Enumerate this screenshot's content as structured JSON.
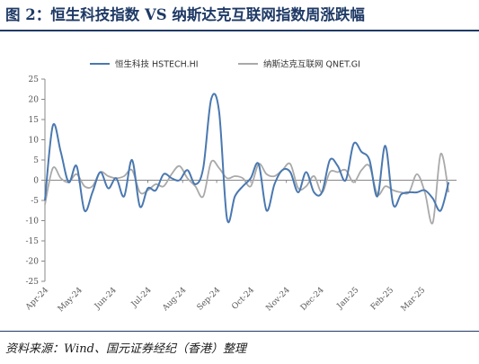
{
  "figure": {
    "title": "图 2：恒生科技指数 VS 纳斯达克互联网指数周涨跌幅",
    "source": "资料来源：Wind、国元证券经纪（香港）整理"
  },
  "chart_data": {
    "type": "line",
    "ylim": [
      -25,
      25
    ],
    "yticks": [
      -25,
      -20,
      -15,
      -10,
      -5,
      0,
      5,
      10,
      15,
      20,
      25
    ],
    "xlim": [
      0,
      52
    ],
    "x_tick_labels": [
      {
        "label": "Apr-24",
        "pos": 0
      },
      {
        "label": "May-24",
        "pos": 4.3
      },
      {
        "label": "Jun-24",
        "pos": 8.6
      },
      {
        "label": "Jul-24",
        "pos": 13
      },
      {
        "label": "Aug-24",
        "pos": 17.4
      },
      {
        "label": "Sep-24",
        "pos": 21.7
      },
      {
        "label": "Oct-24",
        "pos": 26
      },
      {
        "label": "Nov-24",
        "pos": 30.5
      },
      {
        "label": "Dec-24",
        "pos": 34.8
      },
      {
        "label": "Jan-25",
        "pos": 39.2
      },
      {
        "label": "Feb-25",
        "pos": 43.6
      },
      {
        "label": "Mar-25",
        "pos": 47.6
      }
    ],
    "grid": false,
    "legend_position": "top",
    "series": [
      {
        "name": "恒生科技 HSTECH.HI",
        "color": "#4a78b0",
        "values": [
          -5,
          13.5,
          7,
          -0.5,
          3.5,
          -7.5,
          -3,
          2,
          -2,
          0.5,
          -4,
          5,
          -6.5,
          -2,
          -2.5,
          1.5,
          0.5,
          0,
          2.5,
          -1,
          3,
          20,
          17,
          -9.5,
          -4,
          -1.5,
          0.5,
          4,
          -7.5,
          -1,
          2.5,
          2,
          -3,
          2,
          -3,
          -3,
          5,
          3.5,
          0,
          9,
          7,
          5,
          -4,
          8.5,
          -6,
          -3.5,
          -3,
          -3,
          -2.5,
          -4.5,
          -7.5,
          -0.5
        ]
      },
      {
        "name": "纳斯达克互联网 QNET.GI",
        "color": "#a9a9a9",
        "values": [
          -6,
          3,
          0.5,
          -0.5,
          1.5,
          -1.5,
          -1.5,
          2,
          1,
          0.5,
          1,
          2.5,
          -3,
          -2.5,
          -1,
          -1.5,
          1.5,
          3.5,
          0.5,
          -1.5,
          -4,
          4.5,
          3,
          0.5,
          1,
          0.5,
          -1.5,
          4,
          1.5,
          1,
          2.5,
          4,
          -2,
          -1.5,
          1,
          -3,
          2,
          2,
          2.5,
          -0.5,
          2.5,
          3.5,
          -3.5,
          -1.5,
          -2.5,
          -3,
          -3,
          1.5,
          -3,
          -10.5,
          6.5,
          -3
        ]
      }
    ]
  }
}
